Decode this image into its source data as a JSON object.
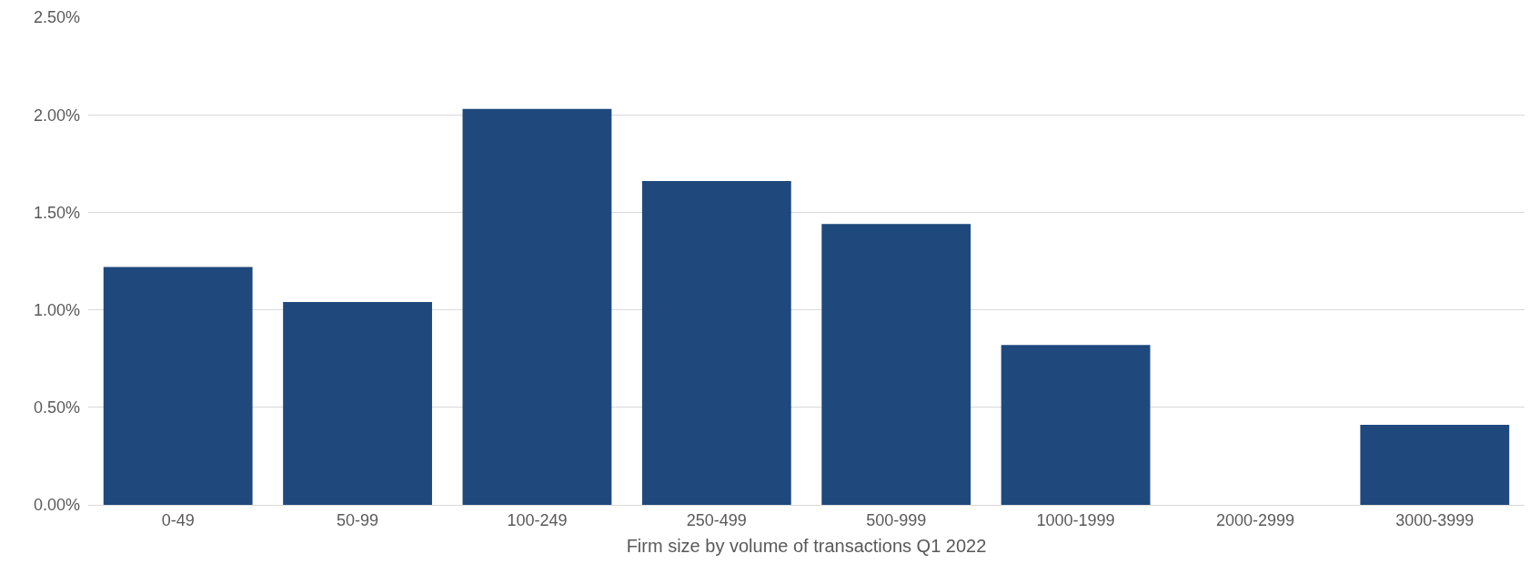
{
  "chart_data": {
    "type": "bar",
    "xlabel": "Firm size by volume of transactions Q1 2022",
    "categories": [
      "0-49",
      "50-99",
      "100-249",
      "250-499",
      "500-999",
      "1000-1999",
      "2000-2999",
      "3000-3999"
    ],
    "values": [
      1.22,
      1.04,
      2.03,
      1.66,
      1.44,
      0.82,
      0,
      0.41
    ],
    "color": "#1f497d",
    "ylim": [
      0,
      2.5
    ],
    "yticks": [
      {
        "value": 0,
        "label": "0.00%"
      },
      {
        "value": 0.5,
        "label": "0.50%"
      },
      {
        "value": 1,
        "label": "1.00%"
      },
      {
        "value": 1.5,
        "label": "1.50%"
      },
      {
        "value": 2,
        "label": "2.00%"
      },
      {
        "value": 2.5,
        "label": "2.50%"
      }
    ],
    "grid": "y"
  }
}
